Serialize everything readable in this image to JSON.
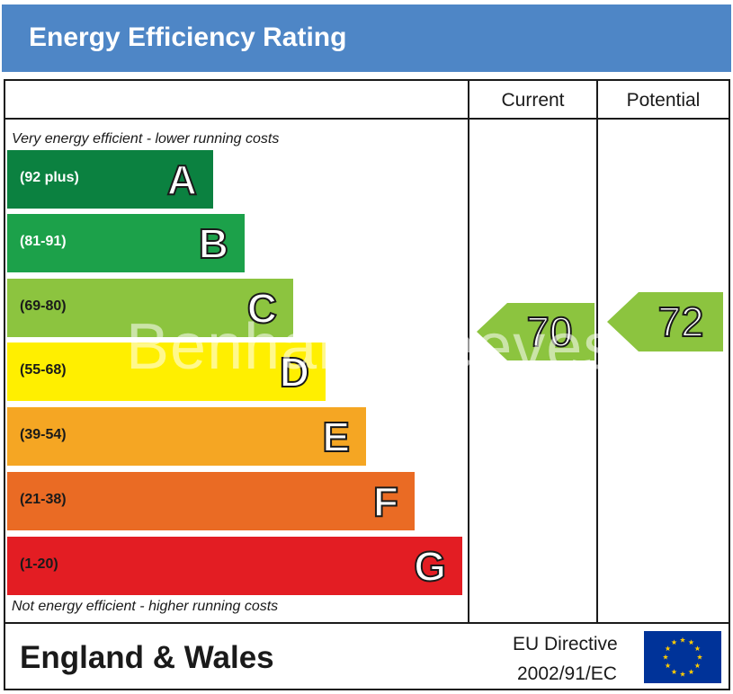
{
  "header": {
    "title": "Energy Efficiency Rating"
  },
  "columns": {
    "current": "Current",
    "potential": "Potential"
  },
  "notes": {
    "top": "Very energy efficient - lower running costs",
    "bottom": "Not energy efficient - higher running costs"
  },
  "bands": [
    {
      "letter": "A",
      "range": "(92 plus)",
      "color": "#0b8140",
      "range_color": "#ffffff"
    },
    {
      "letter": "B",
      "range": "(81-91)",
      "color": "#1ca14a",
      "range_color": "#ffffff"
    },
    {
      "letter": "C",
      "range": "(69-80)",
      "color": "#8cc43f",
      "range_color": "#1a1a1a"
    },
    {
      "letter": "D",
      "range": "(55-68)",
      "color": "#ffef00",
      "range_color": "#1a1a1a"
    },
    {
      "letter": "E",
      "range": "(39-54)",
      "color": "#f5a623",
      "range_color": "#1a1a1a"
    },
    {
      "letter": "F",
      "range": "(21-38)",
      "color": "#ea6b24",
      "range_color": "#1a1a1a"
    },
    {
      "letter": "G",
      "range": "(1-20)",
      "color": "#e31d23",
      "range_color": "#1a1a1a"
    }
  ],
  "ratings": {
    "current": {
      "value": "70",
      "band": "C",
      "color": "#8cc43f"
    },
    "potential": {
      "value": "72",
      "band": "C",
      "color": "#8cc43f"
    }
  },
  "watermark": "Benham Reeves",
  "footer": {
    "region": "England & Wales",
    "directive_line1": "EU Directive",
    "directive_line2": "2002/91/EC",
    "flag_color": "#003399",
    "star_color": "#ffcc00"
  }
}
